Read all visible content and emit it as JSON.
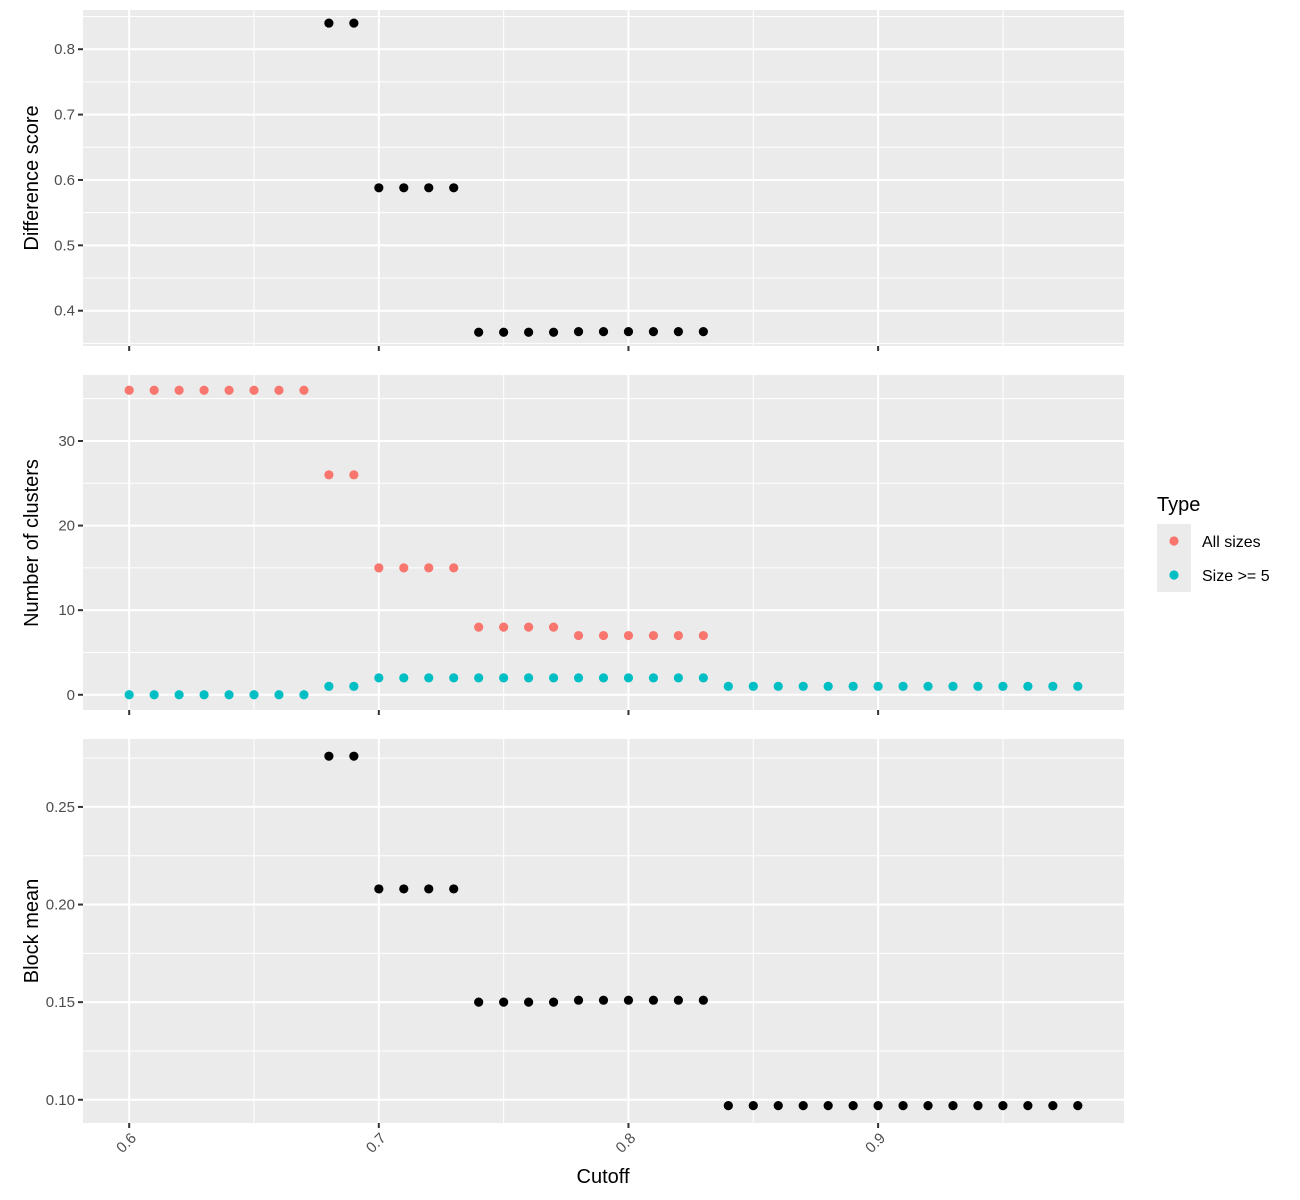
{
  "chart_data": {
    "type": "scatter",
    "xlabel": "Cutoff",
    "x_ticks": [
      0.6,
      0.7,
      0.8,
      0.9
    ],
    "x_tick_labels": [
      "0.6",
      "0.7",
      "0.8",
      "0.9"
    ],
    "xlim": [
      0.5815,
      0.9985
    ],
    "panels": [
      {
        "ylabel": "Difference score",
        "ylim": [
          0.346,
          0.86
        ],
        "y_ticks": [
          0.4,
          0.5,
          0.6,
          0.7,
          0.8
        ],
        "y_tick_labels": [
          "0.4",
          "0.5",
          "0.6",
          "0.7",
          "0.8"
        ],
        "series": [
          {
            "color": "#000000",
            "points": [
              [
                0.68,
                0.84
              ],
              [
                0.69,
                0.84
              ],
              [
                0.7,
                0.588
              ],
              [
                0.71,
                0.588
              ],
              [
                0.72,
                0.588
              ],
              [
                0.73,
                0.588
              ],
              [
                0.74,
                0.367
              ],
              [
                0.75,
                0.367
              ],
              [
                0.76,
                0.367
              ],
              [
                0.77,
                0.367
              ],
              [
                0.78,
                0.368
              ],
              [
                0.79,
                0.368
              ],
              [
                0.8,
                0.368
              ],
              [
                0.81,
                0.368
              ],
              [
                0.82,
                0.368
              ],
              [
                0.83,
                0.368
              ]
            ]
          }
        ]
      },
      {
        "ylabel": "Number of clusters",
        "ylim": [
          -1.8,
          37.8
        ],
        "y_ticks": [
          0,
          10,
          20,
          30
        ],
        "y_tick_labels": [
          "0",
          "10",
          "20",
          "30"
        ],
        "series": [
          {
            "name": "All sizes",
            "color": "#F8766D",
            "points": [
              [
                0.6,
                36
              ],
              [
                0.61,
                36
              ],
              [
                0.62,
                36
              ],
              [
                0.63,
                36
              ],
              [
                0.64,
                36
              ],
              [
                0.65,
                36
              ],
              [
                0.66,
                36
              ],
              [
                0.67,
                36
              ],
              [
                0.68,
                26
              ],
              [
                0.69,
                26
              ],
              [
                0.7,
                15
              ],
              [
                0.71,
                15
              ],
              [
                0.72,
                15
              ],
              [
                0.73,
                15
              ],
              [
                0.74,
                8
              ],
              [
                0.75,
                8
              ],
              [
                0.76,
                8
              ],
              [
                0.77,
                8
              ],
              [
                0.78,
                7
              ],
              [
                0.79,
                7
              ],
              [
                0.8,
                7
              ],
              [
                0.81,
                7
              ],
              [
                0.82,
                7
              ],
              [
                0.83,
                7
              ]
            ]
          },
          {
            "name": "Size >= 5",
            "color": "#00BFC4",
            "points": [
              [
                0.6,
                0
              ],
              [
                0.61,
                0
              ],
              [
                0.62,
                0
              ],
              [
                0.63,
                0
              ],
              [
                0.64,
                0
              ],
              [
                0.65,
                0
              ],
              [
                0.66,
                0
              ],
              [
                0.67,
                0
              ],
              [
                0.68,
                1
              ],
              [
                0.69,
                1
              ],
              [
                0.7,
                2
              ],
              [
                0.71,
                2
              ],
              [
                0.72,
                2
              ],
              [
                0.73,
                2
              ],
              [
                0.74,
                2
              ],
              [
                0.75,
                2
              ],
              [
                0.76,
                2
              ],
              [
                0.77,
                2
              ],
              [
                0.78,
                2
              ],
              [
                0.79,
                2
              ],
              [
                0.8,
                2
              ],
              [
                0.81,
                2
              ],
              [
                0.82,
                2
              ],
              [
                0.83,
                2
              ],
              [
                0.84,
                1
              ],
              [
                0.85,
                1
              ],
              [
                0.86,
                1
              ],
              [
                0.87,
                1
              ],
              [
                0.88,
                1
              ],
              [
                0.89,
                1
              ],
              [
                0.9,
                1
              ],
              [
                0.91,
                1
              ],
              [
                0.92,
                1
              ],
              [
                0.93,
                1
              ],
              [
                0.94,
                1
              ],
              [
                0.95,
                1
              ],
              [
                0.96,
                1
              ],
              [
                0.97,
                1
              ],
              [
                0.98,
                1
              ]
            ]
          }
        ]
      },
      {
        "ylabel": "Block mean",
        "ylim": [
          0.0881,
          0.2848
        ],
        "y_ticks": [
          0.1,
          0.15,
          0.2,
          0.25
        ],
        "y_tick_labels": [
          "0.10",
          "0.15",
          "0.20",
          "0.25"
        ],
        "series": [
          {
            "color": "#000000",
            "points": [
              [
                0.68,
                0.276
              ],
              [
                0.69,
                0.276
              ],
              [
                0.7,
                0.208
              ],
              [
                0.71,
                0.208
              ],
              [
                0.72,
                0.208
              ],
              [
                0.73,
                0.208
              ],
              [
                0.74,
                0.15
              ],
              [
                0.75,
                0.15
              ],
              [
                0.76,
                0.15
              ],
              [
                0.77,
                0.15
              ],
              [
                0.78,
                0.151
              ],
              [
                0.79,
                0.151
              ],
              [
                0.8,
                0.151
              ],
              [
                0.81,
                0.151
              ],
              [
                0.82,
                0.151
              ],
              [
                0.83,
                0.151
              ],
              [
                0.84,
                0.097
              ],
              [
                0.85,
                0.097
              ],
              [
                0.86,
                0.097
              ],
              [
                0.87,
                0.097
              ],
              [
                0.88,
                0.097
              ],
              [
                0.89,
                0.097
              ],
              [
                0.9,
                0.097
              ],
              [
                0.91,
                0.097
              ],
              [
                0.92,
                0.097
              ],
              [
                0.93,
                0.097
              ],
              [
                0.94,
                0.097
              ],
              [
                0.95,
                0.097
              ],
              [
                0.96,
                0.097
              ],
              [
                0.97,
                0.097
              ],
              [
                0.98,
                0.097
              ]
            ]
          }
        ]
      }
    ],
    "legend": {
      "title": "Type",
      "placement": "right",
      "entries": [
        {
          "label": "All sizes",
          "color": "#F8766D"
        },
        {
          "label": "Size >= 5",
          "color": "#00BFC4"
        }
      ]
    },
    "grid": true,
    "panel_background": "#EBEBEB",
    "grid_color": "#FFFFFF"
  }
}
